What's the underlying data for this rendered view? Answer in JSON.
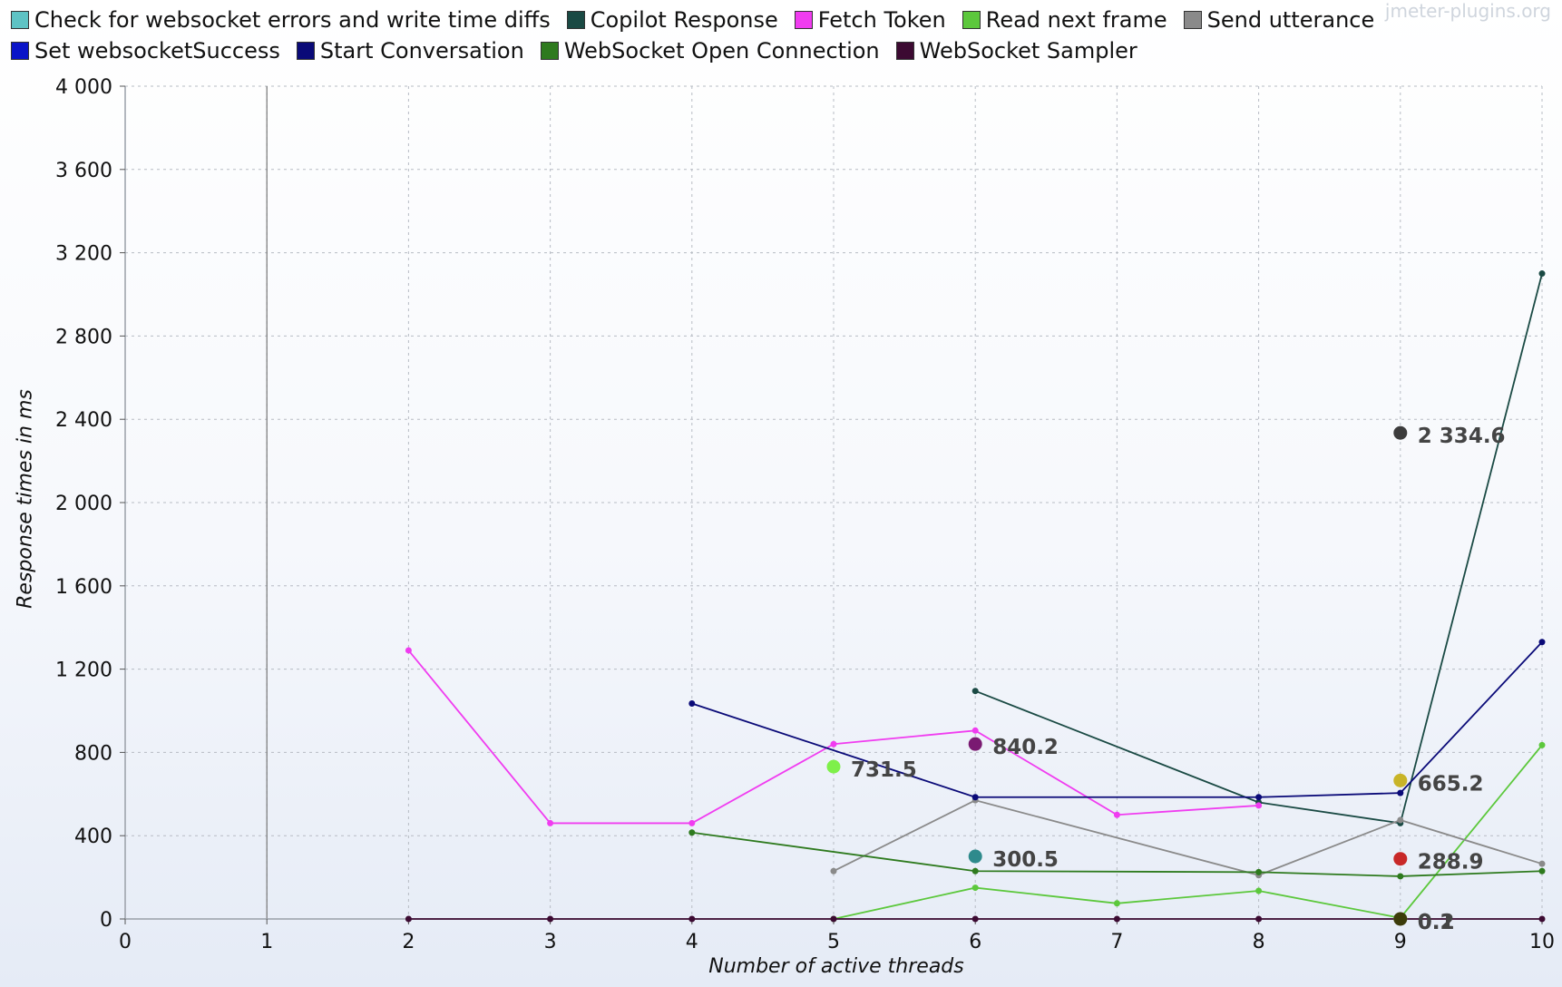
{
  "watermark": "jmeter-plugins.org",
  "chart_data": {
    "type": "line",
    "xlabel": "Number of active threads",
    "ylabel": "Response times in ms",
    "xlim": [
      0,
      10
    ],
    "ylim": [
      0,
      4000
    ],
    "xticks": [
      0,
      1,
      2,
      3,
      4,
      5,
      6,
      7,
      8,
      9,
      10
    ],
    "yticks": [
      0,
      400,
      800,
      1200,
      1600,
      2000,
      2400,
      2800,
      3200,
      3600,
      4000
    ],
    "ytick_labels": [
      "0",
      "400",
      "800",
      "1 200",
      "1 600",
      "2 000",
      "2 400",
      "2 800",
      "3 200",
      "3 600",
      "4 000"
    ],
    "grid": true,
    "legend_position": "top",
    "series": [
      {
        "name": "Check for websocket errors and write time diffs",
        "color": "#5ec3c4",
        "points": [
          [
            9,
            0.2
          ]
        ]
      },
      {
        "name": "Copilot Response",
        "color": "#1a4a44",
        "points": [
          [
            6,
            1095
          ],
          [
            8,
            560
          ],
          [
            9,
            460
          ],
          [
            10,
            3100
          ]
        ]
      },
      {
        "name": "Fetch Token",
        "color": "#f03cf0",
        "points": [
          [
            2,
            1290
          ],
          [
            3,
            460
          ],
          [
            4,
            460
          ],
          [
            5,
            840
          ],
          [
            6,
            905
          ],
          [
            7,
            500
          ],
          [
            8,
            545
          ]
        ]
      },
      {
        "name": "Read next frame",
        "color": "#5cc83c",
        "points": [
          [
            5,
            0
          ],
          [
            6,
            150
          ],
          [
            7,
            75
          ],
          [
            8,
            135
          ],
          [
            9,
            5
          ],
          [
            10,
            835
          ]
        ]
      },
      {
        "name": "Send utterance",
        "color": "#8a8a8a",
        "points": [
          [
            5,
            230
          ],
          [
            6,
            570
          ],
          [
            8,
            210
          ],
          [
            9,
            475
          ],
          [
            10,
            265
          ]
        ]
      },
      {
        "name": "Set websocketSuccess",
        "color": "#0a14c8",
        "points": [
          [
            9,
            0.1
          ]
        ]
      },
      {
        "name": "Start Conversation",
        "color": "#0a0a78",
        "points": [
          [
            4,
            1035
          ],
          [
            6,
            585
          ],
          [
            8,
            585
          ],
          [
            9,
            605
          ],
          [
            10,
            1330
          ]
        ]
      },
      {
        "name": "WebSocket Open Connection",
        "color": "#2e7a1e",
        "points": [
          [
            4,
            415
          ],
          [
            6,
            230
          ],
          [
            8,
            225
          ],
          [
            9,
            205
          ],
          [
            10,
            230
          ]
        ]
      },
      {
        "name": "WebSocket Sampler",
        "color": "#3c0a32",
        "points": [
          [
            2,
            0
          ],
          [
            3,
            0
          ],
          [
            4,
            0
          ],
          [
            5,
            0
          ],
          [
            6,
            0
          ],
          [
            7,
            0
          ],
          [
            8,
            0
          ],
          [
            9,
            0
          ],
          [
            10,
            0
          ]
        ]
      }
    ],
    "annotations": [
      {
        "x": 5,
        "y": 731.5,
        "label": "731.5",
        "color": "#7ef04a"
      },
      {
        "x": 6,
        "y": 840.2,
        "label": "840.2",
        "color": "#7a1a72"
      },
      {
        "x": 6,
        "y": 300.5,
        "label": "300.5",
        "color": "#2e8a8c"
      },
      {
        "x": 9,
        "y": 2334.6,
        "label": "2 334.6",
        "color": "#3c3c3c"
      },
      {
        "x": 9,
        "y": 665.2,
        "label": "665.2",
        "color": "#c8b428"
      },
      {
        "x": 9,
        "y": 288.9,
        "label": "288.9",
        "color": "#c82828"
      },
      {
        "x": 9,
        "y": 0.2,
        "label": "0.2",
        "color": "#c8c8c8"
      },
      {
        "x": 9,
        "y": 0.1,
        "label": "0.1",
        "color": "#3c3c0a"
      }
    ]
  }
}
